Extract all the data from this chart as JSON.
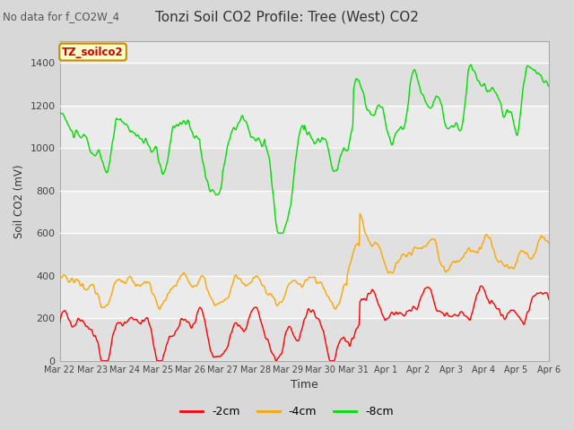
{
  "title": "Tonzi Soil CO2 Profile: Tree (West) CO2",
  "top_left_text": "No data for f_CO2W_4",
  "ylabel": "Soil CO2 (mV)",
  "xlabel": "Time",
  "legend_box_label": "TZ_soilco2",
  "legend_entries": [
    "-2cm",
    "-4cm",
    "-8cm"
  ],
  "legend_colors": [
    "#ff0000",
    "#ffa500",
    "#00dd00"
  ],
  "line_colors": [
    "#ff0000",
    "#ffa500",
    "#00dd00"
  ],
  "ylim": [
    0,
    1500
  ],
  "yticks": [
    0,
    200,
    400,
    600,
    800,
    1000,
    1200,
    1400
  ],
  "bg_color": "#d8d8d8",
  "plot_bg_color": "#e8e8e8",
  "tick_label_color": "#444444",
  "grid_color": "#ffffff",
  "xtick_labels": [
    "Mar 22",
    "Mar 23",
    "Mar 24",
    "Mar 25",
    "Mar 26",
    "Mar 27",
    "Mar 28",
    "Mar 29",
    "Mar 30",
    "Mar 31",
    "Apr 1",
    "Apr 2",
    "Apr 3",
    "Apr 4",
    "Apr 5",
    "Apr 6"
  ],
  "n_points": 700
}
